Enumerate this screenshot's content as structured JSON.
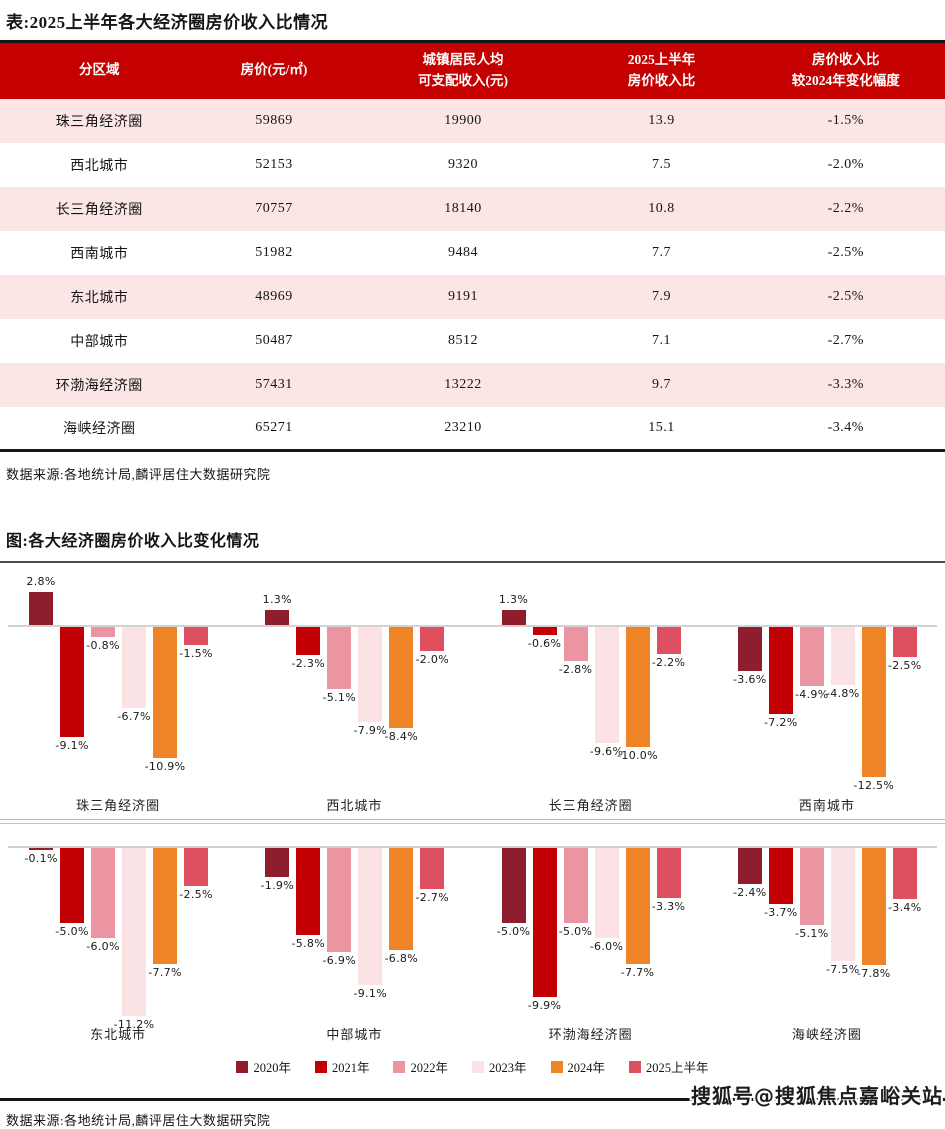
{
  "page": {
    "table_title": "表:2025上半年各大经济圈房价收入比情况",
    "table_source": "数据来源:各地统计局,麟评居住大数据研究院",
    "chart_source": "数据来源:各地统计局,麟评居住大数据研究院",
    "watermark": "搜狐号@搜狐焦点嘉峪关站"
  },
  "table": {
    "headers": [
      "分区域",
      "房价(元/㎡)",
      "城镇居民人均\n可支配收入(元)",
      "2025上半年\n房价收入比",
      "房价收入比\n较2024年变化幅度"
    ],
    "rows": [
      [
        "珠三角经济圈",
        "59869",
        "19900",
        "13.9",
        "-1.5%"
      ],
      [
        "西北城市",
        "52153",
        "9320",
        "7.5",
        "-2.0%"
      ],
      [
        "长三角经济圈",
        "70757",
        "18140",
        "10.8",
        "-2.2%"
      ],
      [
        "西南城市",
        "51982",
        "9484",
        "7.7",
        "-2.5%"
      ],
      [
        "东北城市",
        "48969",
        "9191",
        "7.9",
        "-2.5%"
      ],
      [
        "中部城市",
        "50487",
        "8512",
        "7.1",
        "-2.7%"
      ],
      [
        "环渤海经济圈",
        "57431",
        "13222",
        "9.7",
        "-3.3%"
      ],
      [
        "海峡经济圈",
        "65271",
        "23210",
        "15.1",
        "-3.4%"
      ]
    ]
  },
  "chart_data": {
    "type": "bar",
    "title": "图:各大经济圈房价收入比变化情况",
    "unit": "%",
    "legend": [
      "2020年",
      "2021年",
      "2022年",
      "2023年",
      "2024年",
      "2025上半年"
    ],
    "series_colors": [
      "#8e1e2d",
      "#c20003",
      "#ea95a1",
      "#fbe2e5",
      "#ef8426",
      "#de4f62"
    ],
    "legend_position": "bottom",
    "grid": false,
    "groups": [
      {
        "label": "珠三角经济圈",
        "values": [
          2.8,
          -9.1,
          -0.8,
          -6.7,
          -10.9,
          -1.5
        ]
      },
      {
        "label": "西北城市",
        "values": [
          1.3,
          -2.3,
          -5.1,
          -7.9,
          -8.4,
          -2.0
        ]
      },
      {
        "label": "长三角经济圈",
        "values": [
          1.3,
          -0.6,
          -2.8,
          -9.6,
          -10.0,
          -2.2
        ]
      },
      {
        "label": "西南城市",
        "values": [
          -3.6,
          -7.2,
          -4.9,
          -4.8,
          -12.5,
          -2.5
        ]
      },
      {
        "label": "东北城市",
        "values": [
          -0.1,
          -5.0,
          -6.0,
          -11.2,
          -7.7,
          -2.5
        ]
      },
      {
        "label": "中部城市",
        "values": [
          -1.9,
          -5.8,
          -6.9,
          -9.1,
          -6.8,
          -2.7
        ]
      },
      {
        "label": "环渤海经济圈",
        "values": [
          -5.0,
          -9.9,
          -5.0,
          -6.0,
          -7.7,
          -3.3
        ]
      },
      {
        "label": "海峡经济圈",
        "values": [
          -2.4,
          -3.7,
          -5.1,
          -7.5,
          -7.8,
          -3.4
        ]
      }
    ]
  }
}
